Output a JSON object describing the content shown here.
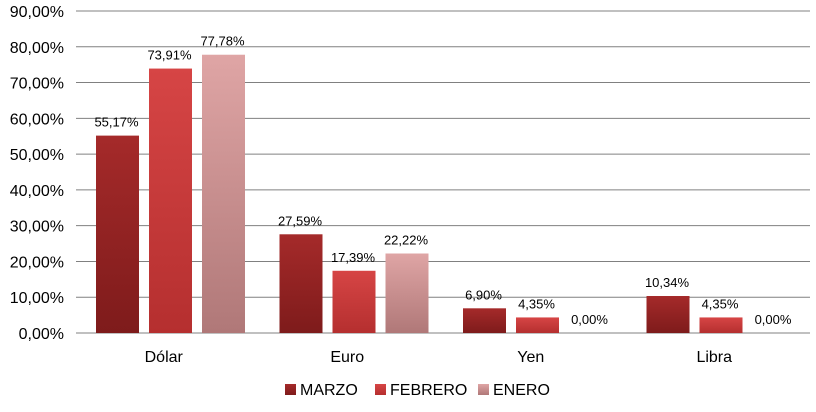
{
  "chart_data": {
    "type": "bar",
    "categories": [
      "Dólar",
      "Euro",
      "Yen",
      "Libra"
    ],
    "series": [
      {
        "name": "MARZO",
        "values": [
          55.17,
          27.59,
          6.9,
          10.34
        ],
        "labels": [
          "55,17%",
          "27,59%",
          "6,90%",
          "10,34%"
        ],
        "color_top": "#a52a2a",
        "color_bottom": "#7e1b1b"
      },
      {
        "name": "FEBRERO",
        "values": [
          73.91,
          17.39,
          4.35,
          4.35
        ],
        "labels": [
          "73,91%",
          "17,39%",
          "4,35%",
          "4,35%"
        ],
        "color_top": "#d64545",
        "color_bottom": "#b52f2f"
      },
      {
        "name": "ENERO",
        "values": [
          77.78,
          22.22,
          0.0,
          0.0
        ],
        "labels": [
          "77,78%",
          "22,22%",
          "0,00%",
          "0,00%"
        ],
        "color_top": "#dfa5a5",
        "color_bottom": "#b07878"
      }
    ],
    "ylim": [
      0,
      90
    ],
    "yticks": [
      0,
      10,
      20,
      30,
      40,
      50,
      60,
      70,
      80,
      90
    ],
    "ytick_labels": [
      "0,00%",
      "10,00%",
      "20,00%",
      "30,00%",
      "40,00%",
      "50,00%",
      "60,00%",
      "70,00%",
      "80,00%",
      "90,00%"
    ],
    "grid": true,
    "legend_position": "bottom",
    "title": "",
    "xlabel": "",
    "ylabel": ""
  }
}
